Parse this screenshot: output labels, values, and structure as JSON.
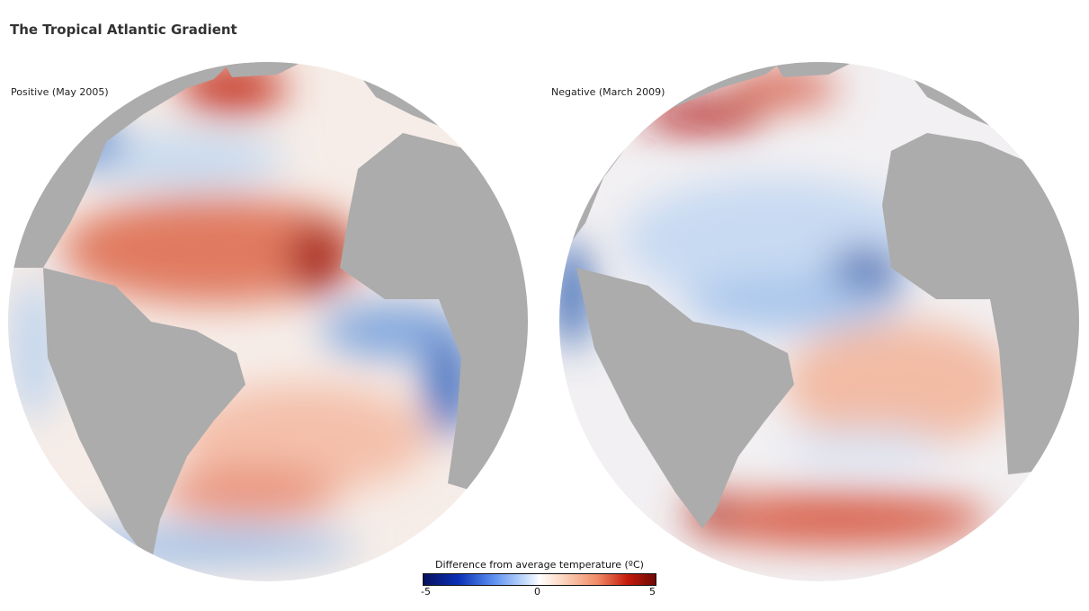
{
  "title": "The Tropical Atlantic Gradient",
  "maps": [
    {
      "label": "Positive (May 2005)"
    },
    {
      "label": "Negative (March 2009)"
    }
  ],
  "colorbar": {
    "title": "Difference from average temperature (ºC)",
    "min_label": "-5",
    "mid_label": "0",
    "max_label": "5",
    "colors": [
      "#08105e",
      "#5a8ff0",
      "#ffffff",
      "#f08a66",
      "#6e0a04"
    ]
  }
}
